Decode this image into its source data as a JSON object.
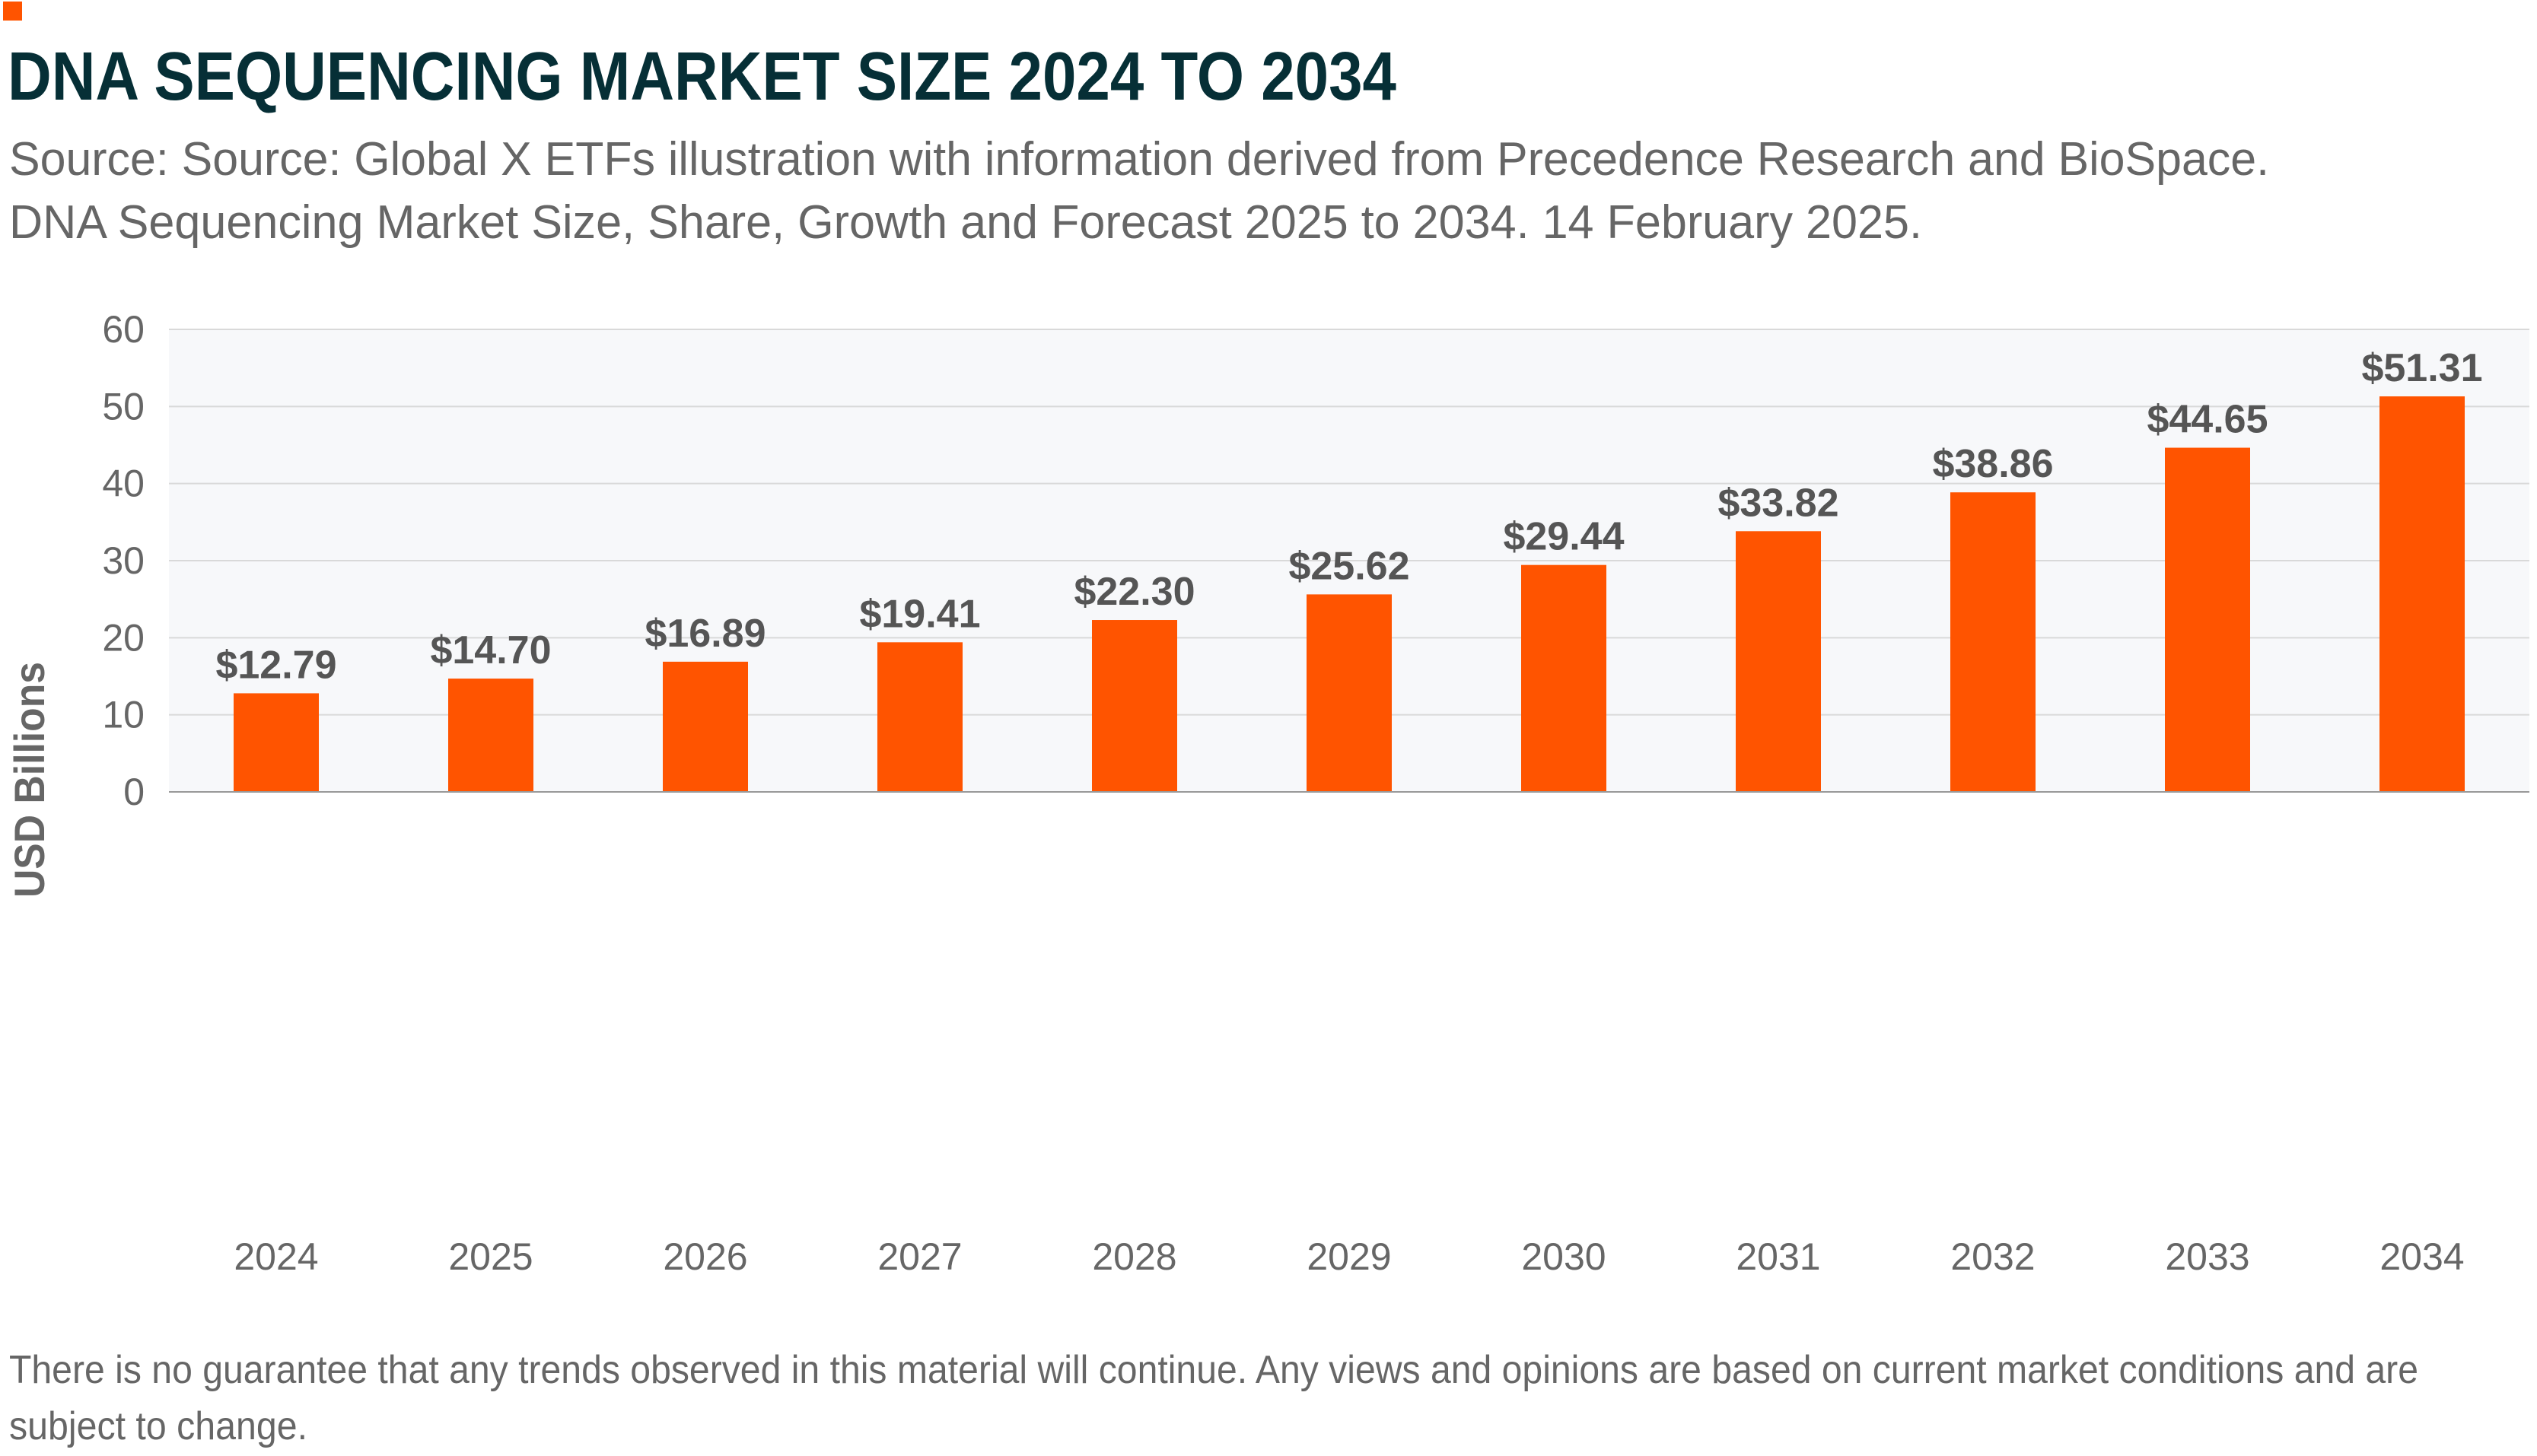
{
  "colors": {
    "accent": "#FF5400",
    "title": "#062f36",
    "text": "#666666",
    "plot_bg": "#f7f8fa",
    "grid": "#d9d9d9"
  },
  "header": {
    "title": "DNA SEQUENCING MARKET SIZE 2024 TO 2034",
    "subtitle_line1": "Source: Source: Global X ETFs illustration with information derived from Precedence Research and BioSpace.",
    "subtitle_line2": "DNA Sequencing Market Size, Share, Growth and Forecast 2025 to 2034. 14 February 2025."
  },
  "footnote": {
    "line1": "There is no guarantee that any trends observed in this material will continue. Any views and opinions are based on current market conditions and are",
    "line2": "subject to change."
  },
  "chart_data": {
    "type": "bar",
    "title": "DNA SEQUENCING MARKET SIZE 2024 TO 2034",
    "xlabel": "",
    "ylabel": "USD Billions",
    "ylim": [
      0,
      60
    ],
    "yticks": [
      0,
      10,
      20,
      30,
      40,
      50,
      60
    ],
    "grid": true,
    "categories": [
      "2024",
      "2025",
      "2026",
      "2027",
      "2028",
      "2029",
      "2030",
      "2031",
      "2032",
      "2033",
      "2034"
    ],
    "values": [
      12.79,
      14.7,
      16.89,
      19.41,
      22.3,
      25.62,
      29.44,
      33.82,
      38.86,
      44.65,
      51.31
    ],
    "data_labels": [
      "$12.79",
      "$14.70",
      "$16.89",
      "$19.41",
      "$22.30",
      "$25.62",
      "$29.44",
      "$33.82",
      "$38.86",
      "$44.65",
      "$51.31"
    ],
    "bar_color": "#FF5400"
  }
}
